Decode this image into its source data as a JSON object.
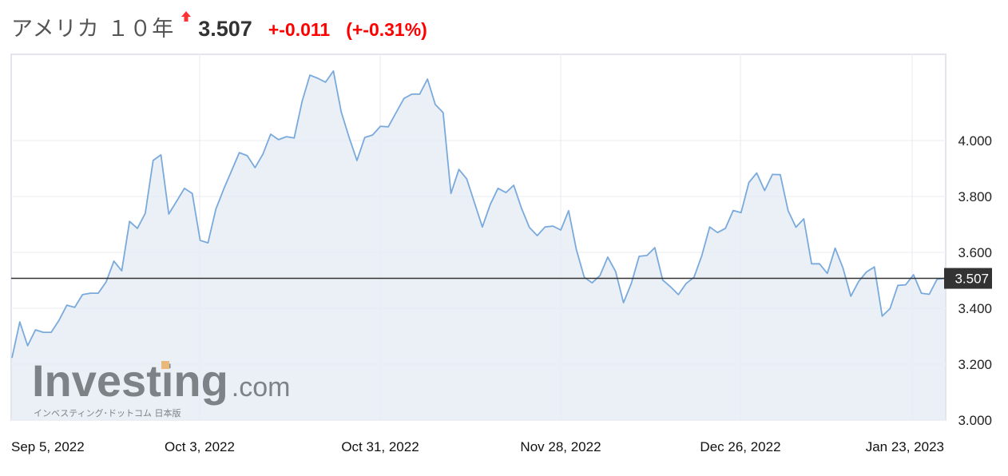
{
  "header": {
    "title": "アメリカ １０年",
    "direction_icon": "up-arrow-icon",
    "price": "3.507",
    "change": "+-0.011",
    "change_percent": "(+-0.31%)",
    "change_color": "#ff0000"
  },
  "watermark": {
    "brand": "Investing",
    "suffix": ".com",
    "tagline": "インベスティング･ドットコム 日本版"
  },
  "chart_data": {
    "type": "area",
    "title": "",
    "xlabel": "",
    "ylabel": "",
    "x_tick_labels": [
      "Sep 5, 2022",
      "Oct 3, 2022",
      "Oct 31, 2022",
      "Nov 28, 2022",
      "Dec 26, 2022",
      "Jan 23, 2023"
    ],
    "y_ticks": [
      3.0,
      3.2,
      3.4,
      3.6,
      3.8,
      4.0
    ],
    "y_tick_labels": [
      "3.000",
      "3.200",
      "3.400",
      "3.600",
      "3.800",
      "4.000"
    ],
    "ylim": [
      3.0,
      4.31
    ],
    "grid": true,
    "y_axis_side": "right",
    "current_value": 3.507,
    "current_value_label": "3.507",
    "line_color": "#7aaadc",
    "fill_color": "#e6edf5",
    "series": [
      {
        "values": [
          3.223,
          3.351,
          3.266,
          3.323,
          3.314,
          3.314,
          3.357,
          3.411,
          3.403,
          3.449,
          3.454,
          3.454,
          3.494,
          3.569,
          3.534,
          3.711,
          3.686,
          3.74,
          3.929,
          3.949,
          3.737,
          3.783,
          3.829,
          3.811,
          3.643,
          3.634,
          3.754,
          3.826,
          3.891,
          3.957,
          3.946,
          3.903,
          3.951,
          4.023,
          4.003,
          4.014,
          4.009,
          4.14,
          4.234,
          4.223,
          4.209,
          4.249,
          4.103,
          4.011,
          3.929,
          4.011,
          4.02,
          4.051,
          4.049,
          4.1,
          4.151,
          4.166,
          4.166,
          4.22,
          4.129,
          4.1,
          3.811,
          3.897,
          3.863,
          3.777,
          3.691,
          3.771,
          3.829,
          3.814,
          3.84,
          3.757,
          3.689,
          3.66,
          3.691,
          3.694,
          3.68,
          3.749,
          3.609,
          3.511,
          3.491,
          3.517,
          3.583,
          3.531,
          3.42,
          3.489,
          3.586,
          3.589,
          3.617,
          3.501,
          3.477,
          3.449,
          3.489,
          3.511,
          3.589,
          3.691,
          3.671,
          3.686,
          3.75,
          3.742,
          3.85,
          3.884,
          3.821,
          3.879,
          3.878,
          3.749,
          3.69,
          3.72,
          3.559,
          3.559,
          3.525,
          3.615,
          3.544,
          3.443,
          3.496,
          3.53,
          3.548,
          3.372,
          3.399,
          3.482,
          3.484,
          3.52,
          3.454,
          3.45,
          3.504,
          3.507
        ]
      }
    ]
  }
}
